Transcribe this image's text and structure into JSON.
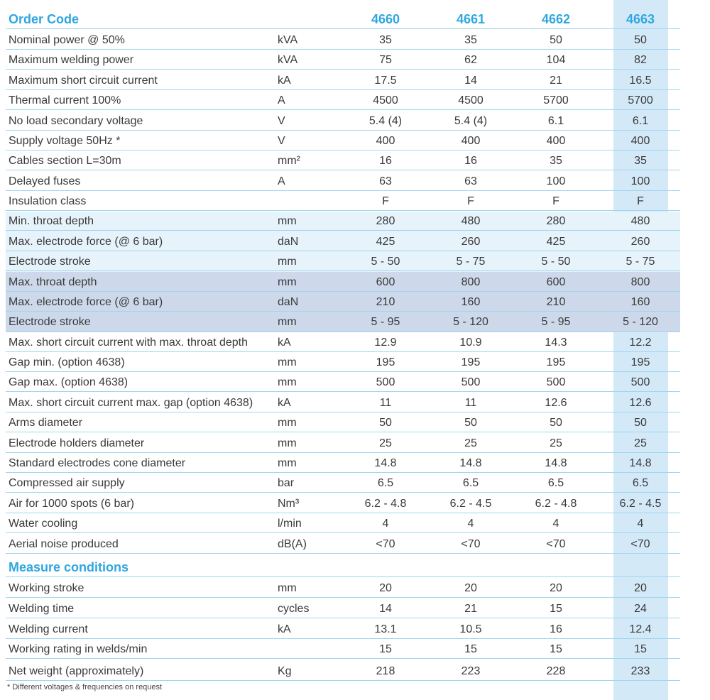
{
  "header": {
    "title": "Order Code",
    "codes": [
      "4660",
      "4661",
      "4662",
      "4663"
    ]
  },
  "rows": [
    {
      "label": "Nominal power @ 50%",
      "unit": "kVA",
      "values": [
        "35",
        "35",
        "50",
        "50"
      ]
    },
    {
      "label": "Maximum welding power",
      "unit": "kVA",
      "values": [
        "75",
        "62",
        "104",
        "82"
      ]
    },
    {
      "label": "Maximum short circuit current",
      "unit": "kA",
      "values": [
        "17.5",
        "14",
        "21",
        "16.5"
      ]
    },
    {
      "label": "Thermal current 100%",
      "unit": "A",
      "values": [
        "4500",
        "4500",
        "5700",
        "5700"
      ]
    },
    {
      "label": "No load secondary voltage",
      "unit": "V",
      "values": [
        "5.4 (4)",
        "5.4 (4)",
        "6.1",
        "6.1"
      ]
    },
    {
      "label": "Supply voltage 50Hz *",
      "unit": "V",
      "values": [
        "400",
        "400",
        "400",
        "400"
      ]
    },
    {
      "label": "Cables section L=30m",
      "unit": "mm²",
      "values": [
        "16",
        "16",
        "35",
        "35"
      ]
    },
    {
      "label": "Delayed fuses",
      "unit": "A",
      "values": [
        "63",
        "63",
        "100",
        "100"
      ]
    },
    {
      "label": "Insulation class",
      "unit": "",
      "values": [
        "F",
        "F",
        "F",
        "F"
      ]
    },
    {
      "label": "Min. throat depth",
      "unit": "mm",
      "values": [
        "280",
        "480",
        "280",
        "480"
      ]
    },
    {
      "label": "Max. electrode force (@ 6 bar)",
      "unit": "daN",
      "values": [
        "425",
        "260",
        "425",
        "260"
      ]
    },
    {
      "label": "Electrode stroke",
      "unit": "mm",
      "values": [
        "5 - 50",
        "5 - 75",
        "5 - 50",
        "5 - 75"
      ]
    },
    {
      "label": "Max. throat depth",
      "unit": "mm",
      "values": [
        "600",
        "800",
        "600",
        "800"
      ]
    },
    {
      "label": "Max. electrode force (@ 6 bar)",
      "unit": "daN",
      "values": [
        "210",
        "160",
        "210",
        "160"
      ]
    },
    {
      "label": "Electrode stroke",
      "unit": "mm",
      "values": [
        "5 - 95",
        "5 - 120",
        "5 - 95",
        "5 - 120"
      ]
    },
    {
      "label": "Max. short circuit current with max. throat depth",
      "unit": "kA",
      "values": [
        "12.9",
        "10.9",
        "14.3",
        "12.2"
      ]
    },
    {
      "label": "Gap min. (option 4638)",
      "unit": "mm",
      "values": [
        "195",
        "195",
        "195",
        "195"
      ]
    },
    {
      "label": "Gap max. (option 4638)",
      "unit": "mm",
      "values": [
        "500",
        "500",
        "500",
        "500"
      ]
    },
    {
      "label": "Max. short circuit current max. gap (option 4638)",
      "unit": "kA",
      "values": [
        "11",
        "11",
        "12.6",
        "12.6"
      ]
    },
    {
      "label": "Arms diameter",
      "unit": "mm",
      "values": [
        "50",
        "50",
        "50",
        "50"
      ]
    },
    {
      "label": "Electrode holders diameter",
      "unit": "mm",
      "values": [
        "25",
        "25",
        "25",
        "25"
      ]
    },
    {
      "label": "Standard electrodes cone diameter",
      "unit": "mm",
      "values": [
        "14.8",
        "14.8",
        "14.8",
        "14.8"
      ]
    },
    {
      "label": "Compressed air supply",
      "unit": "bar",
      "values": [
        "6.5",
        "6.5",
        "6.5",
        "6.5"
      ]
    },
    {
      "label": "Air for 1000 spots (6 bar)",
      "unit": "Nm³",
      "values": [
        "6.2 - 4.8",
        "6.2 - 4.5",
        "6.2 - 4.8",
        "6.2 - 4.5"
      ]
    },
    {
      "label": "Water cooling",
      "unit": "l/min",
      "values": [
        "4",
        "4",
        "4",
        "4"
      ]
    },
    {
      "label": "Aerial noise produced",
      "unit": "dB(A)",
      "values": [
        "<70",
        "<70",
        "<70",
        "<70"
      ]
    }
  ],
  "measure": {
    "title": "Measure conditions",
    "rows": [
      {
        "label": "Working stroke",
        "unit": "mm",
        "values": [
          "20",
          "20",
          "20",
          "20"
        ]
      },
      {
        "label": "Welding time",
        "unit": "cycles",
        "values": [
          "14",
          "21",
          "15",
          "24"
        ]
      },
      {
        "label": "Welding current",
        "unit": "kA",
        "values": [
          "13.1",
          "10.5",
          "16",
          "12.4"
        ]
      },
      {
        "label": "Working rating in welds/min",
        "unit": "",
        "values": [
          "15",
          "15",
          "15",
          "15"
        ]
      },
      {
        "label": "Net weight (approximately)",
        "unit": "Kg",
        "values": [
          "218",
          "223",
          "228",
          "233"
        ]
      }
    ]
  },
  "footnote": "* Different voltages & frequencies on request",
  "colors": {
    "accent": "#2ea7e0",
    "highlight_column": "#d4e9f8",
    "light_band": "#e6f3fb",
    "dark_band": "#cdd9ea",
    "rule": "#9fd6ef"
  }
}
